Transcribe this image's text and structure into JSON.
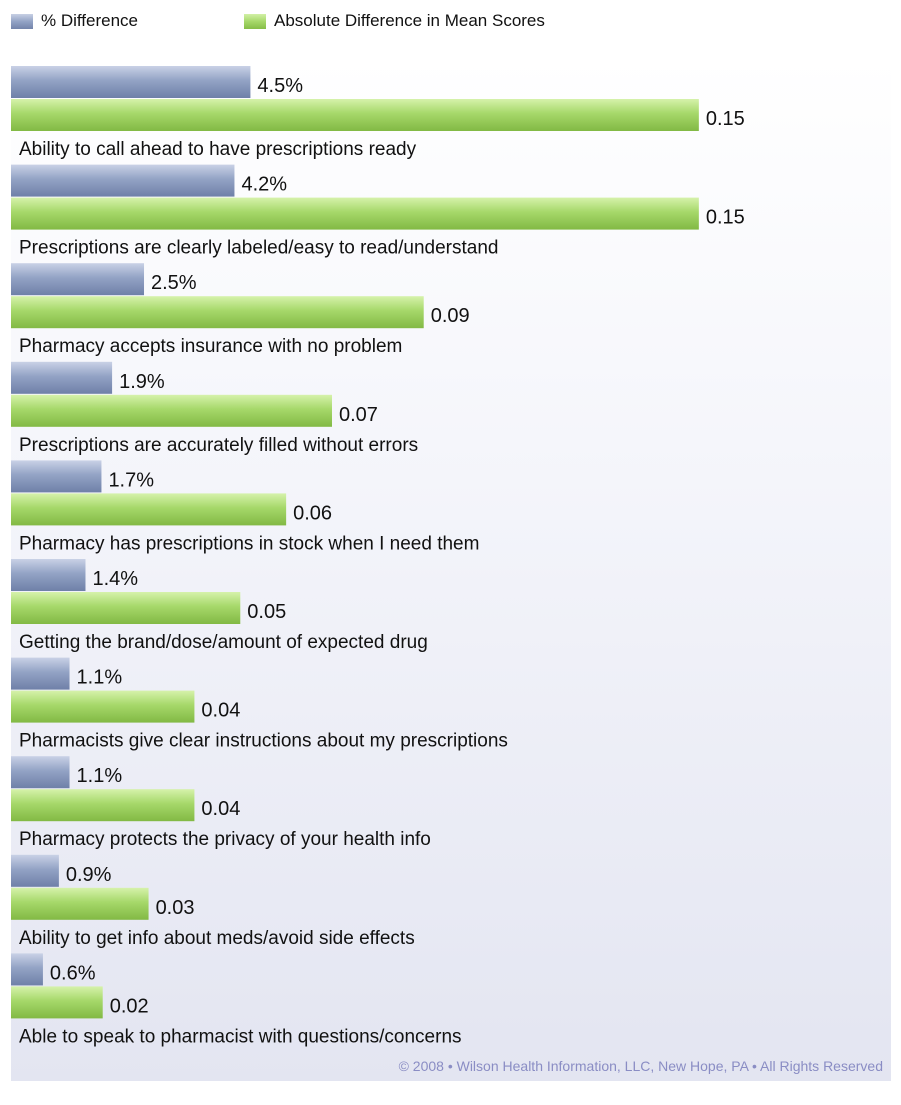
{
  "legend": {
    "pct_label": "% Difference",
    "abs_label": "Absolute Difference in Mean Scores"
  },
  "colors": {
    "pct_bar": "#93a3c5",
    "abs_bar": "#a6d86a",
    "copyright_text": "#8a8dc4"
  },
  "copyright": "© 2008 • Wilson Health Information, LLC, New Hope, PA • All Rights Reserved",
  "chart_data": {
    "type": "bar",
    "orientation": "horizontal",
    "grid": false,
    "legend_position": "top-left",
    "categories": [
      "Ability to call ahead to have prescriptions ready",
      "Prescriptions are clearly labeled/easy to read/understand",
      "Pharmacy accepts insurance with no problem",
      "Prescriptions are accurately filled without errors",
      "Pharmacy has prescriptions in stock when I need them",
      "Getting the brand/dose/amount of expected drug",
      "Pharmacists give clear instructions about my prescriptions",
      "Pharmacy protects the privacy of your health info",
      "Ability to get info about meds/avoid side effects",
      "Able to speak to pharmacist with questions/concerns"
    ],
    "series": [
      {
        "name": "% Difference",
        "values": [
          4.5,
          4.2,
          2.5,
          1.9,
          1.7,
          1.4,
          1.1,
          1.1,
          0.9,
          0.6
        ],
        "labels": [
          "4.5%",
          "4.2%",
          "2.5%",
          "1.9%",
          "1.7%",
          "1.4%",
          "1.1%",
          "1.1%",
          "0.9%",
          "0.6%"
        ],
        "xlim": [
          0,
          15.6
        ]
      },
      {
        "name": "Absolute Difference in Mean Scores",
        "values": [
          0.15,
          0.15,
          0.09,
          0.07,
          0.06,
          0.05,
          0.04,
          0.04,
          0.03,
          0.02
        ],
        "labels": [
          "0.15",
          "0.15",
          "0.09",
          "0.07",
          "0.06",
          "0.05",
          "0.04",
          "0.04",
          "0.03",
          "0.02"
        ],
        "xlim": [
          0,
          0.181
        ]
      }
    ]
  }
}
